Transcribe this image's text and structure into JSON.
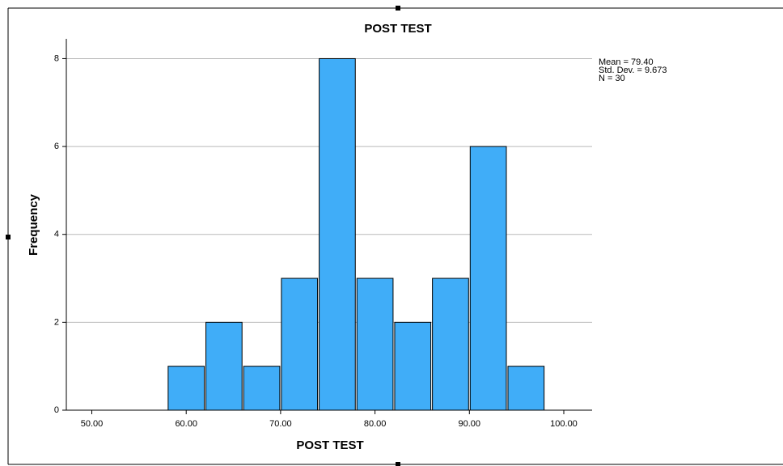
{
  "chart_data": {
    "type": "histogram",
    "title": "POST TEST",
    "x_label": "POST TEST",
    "y_label": "Frequency",
    "bins": [
      58,
      62,
      66,
      70,
      74,
      78,
      82,
      86,
      90,
      94,
      98
    ],
    "counts": [
      1,
      2,
      1,
      3,
      8,
      3,
      2,
      3,
      6,
      1
    ],
    "color": "#40adf8",
    "xlim": [
      47.3,
      103
    ],
    "xticks": [
      {
        "value": 50,
        "label": "50.00"
      },
      {
        "value": 60,
        "label": "60.00"
      },
      {
        "value": 70,
        "label": "70.00"
      },
      {
        "value": 80,
        "label": "80.00"
      },
      {
        "value": 90,
        "label": "90.00"
      },
      {
        "value": 100,
        "label": "100.00"
      }
    ],
    "ylim": [
      0,
      8.45
    ],
    "yticks": [
      0,
      2,
      4,
      6,
      8
    ],
    "grid": true,
    "stats": [
      "Mean = 79.40",
      "Std. Dev. = 9.673",
      "N = 30"
    ]
  }
}
